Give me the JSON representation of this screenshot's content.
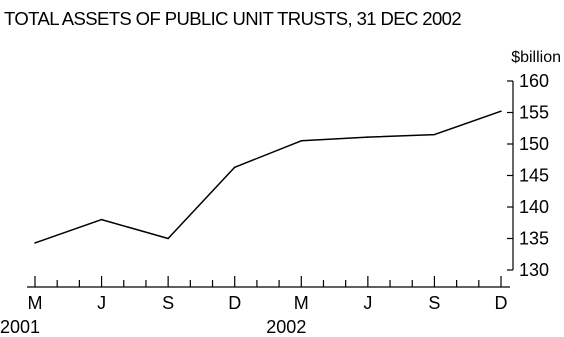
{
  "chart_data": {
    "type": "line",
    "title": "TOTAL ASSETS OF PUBLIC UNIT TRUSTS, 31 DEC 2002",
    "ylabel": "$billion",
    "xlabel": "",
    "ylim": [
      130,
      160
    ],
    "yticks": [
      130,
      135,
      140,
      145,
      150,
      155,
      160
    ],
    "grid": false,
    "legend": "none",
    "x": [
      "Mar 2001",
      "Jun 2001",
      "Sep 2001",
      "Dec 2001",
      "Mar 2002",
      "Jun 2002",
      "Sep 2002",
      "Dec 2002"
    ],
    "x_tick_labels": [
      "M",
      "J",
      "S",
      "D",
      "M",
      "J",
      "S",
      "D"
    ],
    "year_labels": [
      {
        "label": "2001",
        "at_index": 0
      },
      {
        "label": "2002",
        "at_index": 4
      }
    ],
    "series": [
      {
        "values": [
          134.3,
          138.0,
          135.0,
          146.3,
          150.5,
          151.1,
          151.5,
          155.2
        ],
        "color": "#000000"
      }
    ]
  }
}
